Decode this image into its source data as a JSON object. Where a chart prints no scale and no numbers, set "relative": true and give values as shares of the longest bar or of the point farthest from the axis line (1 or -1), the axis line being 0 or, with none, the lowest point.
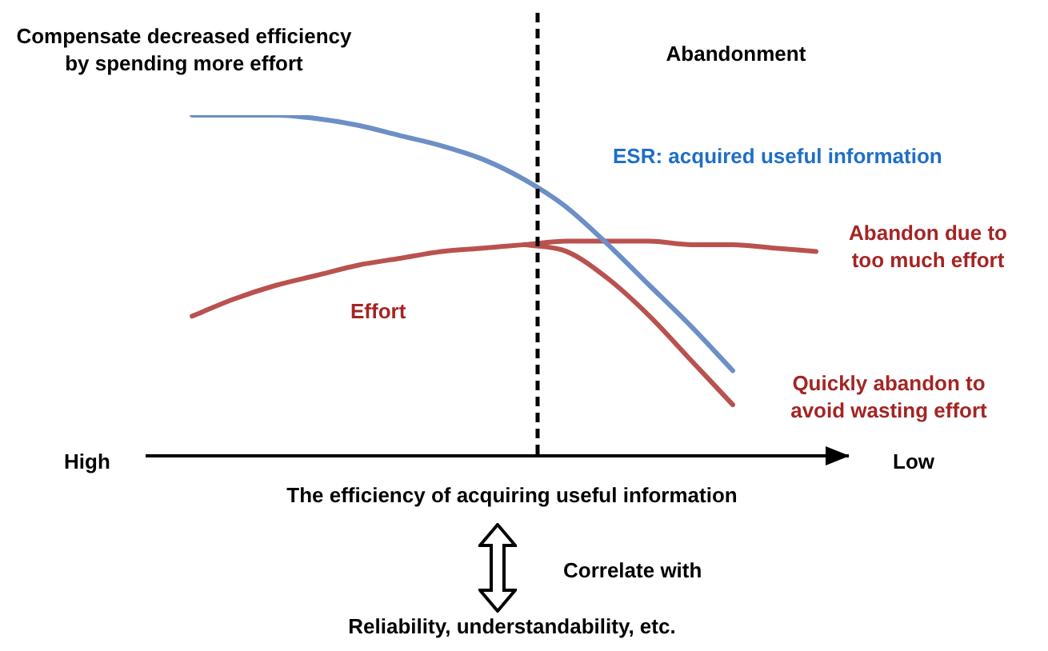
{
  "chart_data": {
    "type": "line",
    "relative": true,
    "categories": [
      null,
      null,
      null,
      null,
      null,
      null,
      null,
      null,
      null,
      null,
      null,
      null,
      null,
      null,
      null,
      null
    ],
    "xlabel": "The efficiency of acquiring useful information",
    "series": [
      {
        "name": "ESR: acquired useful information",
        "color": "#6c8fc6",
        "values": [
          1.0,
          1.0,
          1.0,
          0.99,
          0.97,
          0.94,
          0.91,
          0.87,
          0.81,
          0.73,
          0.62,
          0.5,
          0.38,
          0.25,
          null,
          null
        ]
      },
      {
        "name": "Effort",
        "color": "#b9524f",
        "values": [
          0.41,
          0.46,
          0.5,
          0.53,
          0.56,
          0.58,
          0.6,
          0.61,
          0.62,
          null,
          null,
          null,
          null,
          null,
          null,
          null
        ]
      },
      {
        "name": "Abandon due to too much effort",
        "color": "#b9524f",
        "values": [
          null,
          null,
          null,
          null,
          null,
          null,
          null,
          null,
          0.62,
          0.63,
          0.63,
          0.63,
          0.62,
          0.62,
          0.61,
          0.6
        ]
      },
      {
        "name": "Quickly abandon to avoid wasting effort",
        "color": "#b9524f",
        "values": [
          null,
          null,
          null,
          null,
          null,
          null,
          null,
          null,
          0.62,
          0.6,
          0.52,
          0.41,
          0.28,
          0.15,
          null,
          null
        ]
      }
    ],
    "annotations": [
      "Compensate decreased efficiency by spending more effort",
      "Abandonment",
      "High",
      "Low",
      "Correlate with",
      "Reliability, understandability, etc."
    ],
    "legend": false,
    "grid": false,
    "marker": "none",
    "line_style": "solid",
    "tick_labels": false
  }
}
